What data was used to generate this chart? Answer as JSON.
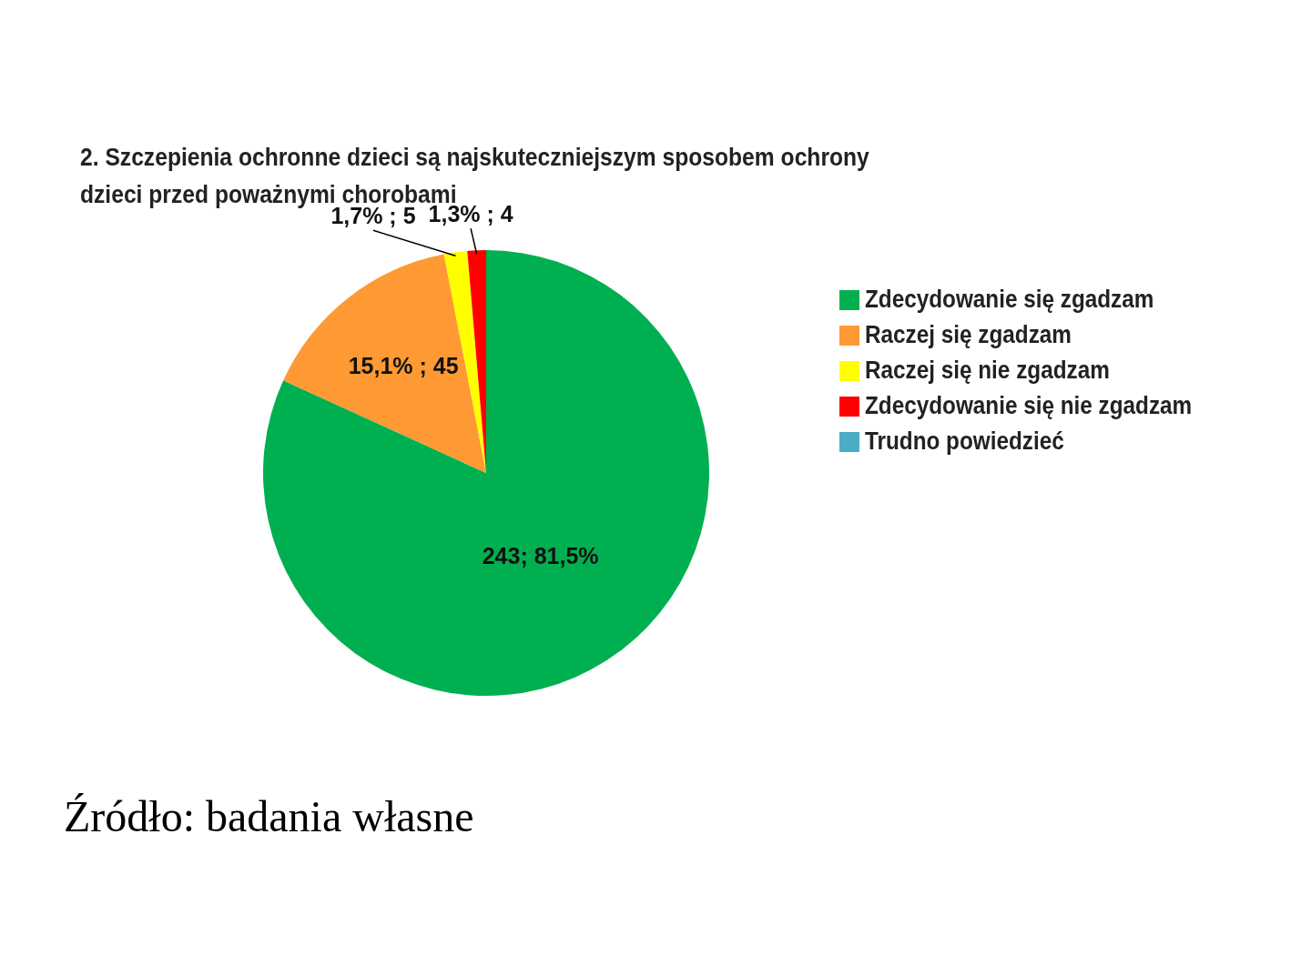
{
  "chart_data": {
    "type": "pie",
    "title": "2. Szczepienia ochronne dzieci są najskuteczniejszym sposobem ochrony dzieci przed poważnymi chorobami",
    "categories": [
      "Zdecydowanie się zgadzam",
      "Raczej się zgadzam",
      "Raczej się nie zgadzam",
      "Zdecydowanie się nie zgadzam",
      "Trudno powiedzieć"
    ],
    "values": [
      243,
      45,
      5,
      4,
      0
    ],
    "colors": [
      "#00b050",
      "#ff9933",
      "#ffff00",
      "#ff0000",
      "#4bacc6"
    ],
    "value_labels": [
      "243; 81,5%",
      "15,1% ; 45",
      "1,7% ; 5",
      "1,3% ; 4",
      null
    ],
    "legend": "right",
    "annotations": [
      "Źródło: badania własne"
    ]
  }
}
